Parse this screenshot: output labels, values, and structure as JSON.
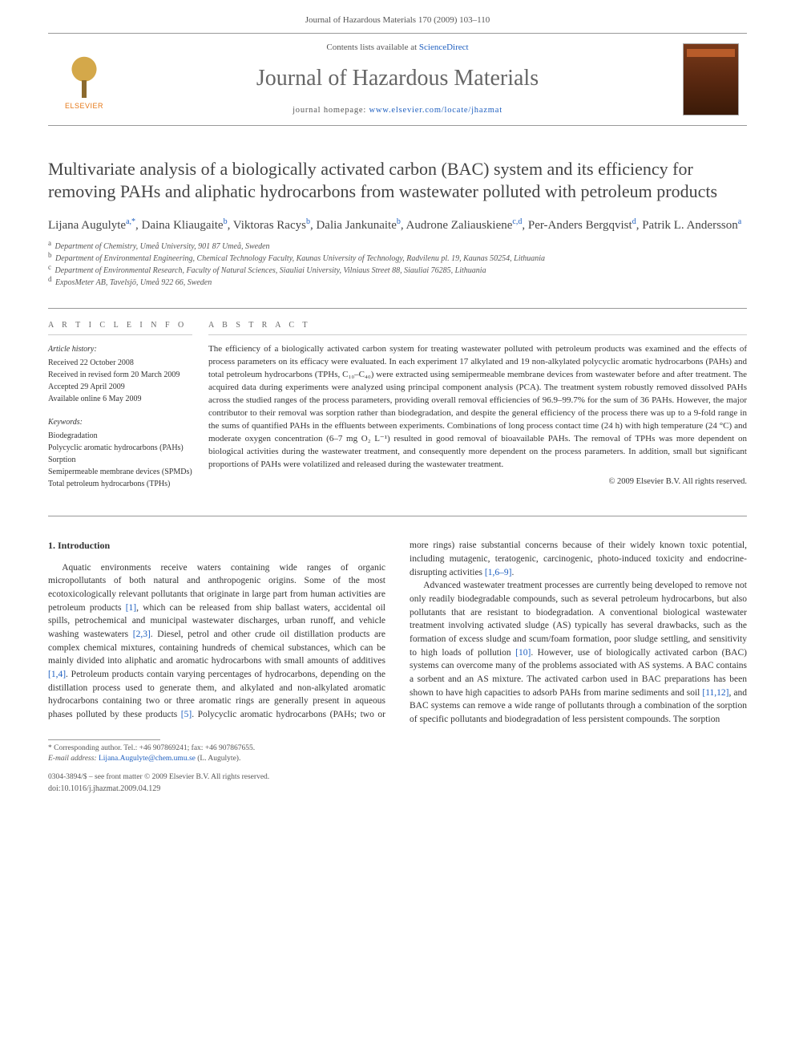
{
  "header": {
    "running_head": "Journal of Hazardous Materials 170 (2009) 103–110",
    "contents_prefix": "Contents lists available at ",
    "contents_link": "ScienceDirect",
    "journal_name": "Journal of Hazardous Materials",
    "homepage_prefix": "journal homepage: ",
    "homepage_url": "www.elsevier.com/locate/jhazmat",
    "publisher_name": "ELSEVIER"
  },
  "title": "Multivariate analysis of a biologically activated carbon (BAC) system and its efficiency for removing PAHs and aliphatic hydrocarbons from wastewater polluted with petroleum products",
  "authors_html": "Lijana Augulyte<sup>a,*</sup>, Daina Kliaugaite<sup>b</sup>, Viktoras Racys<sup>b</sup>, Dalia Jankunaite<sup>b</sup>, Audrone Zaliauskiene<sup>c,d</sup>, Per-Anders Bergqvist<sup>d</sup>, Patrik L. Andersson<sup>a</sup>",
  "affiliations": [
    {
      "sup": "a",
      "text": "Department of Chemistry, Umeå University, 901 87 Umeå, Sweden"
    },
    {
      "sup": "b",
      "text": "Department of Environmental Engineering, Chemical Technology Faculty, Kaunas University of Technology, Radvilenu pl. 19, Kaunas 50254, Lithuania"
    },
    {
      "sup": "c",
      "text": "Department of Environmental Research, Faculty of Natural Sciences, Siauliai University, Vilniaus Street 88, Siauliai 76285, Lithuania"
    },
    {
      "sup": "d",
      "text": "ExposMeter AB, Tavelsjö, Umeå 922 66, Sweden"
    }
  ],
  "article_info": {
    "heading": "A R T I C L E   I N F O",
    "history_label": "Article history:",
    "history": [
      "Received 22 October 2008",
      "Received in revised form 20 March 2009",
      "Accepted 29 April 2009",
      "Available online 6 May 2009"
    ],
    "keywords_label": "Keywords:",
    "keywords": [
      "Biodegradation",
      "Polycyclic aromatic hydrocarbons (PAHs)",
      "Sorption",
      "Semipermeable membrane devices (SPMDs)",
      "Total petroleum hydrocarbons (TPHs)"
    ]
  },
  "abstract": {
    "heading": "A B S T R A C T",
    "body": "The efficiency of a biologically activated carbon system for treating wastewater polluted with petroleum products was examined and the effects of process parameters on its efficacy were evaluated. In each experiment 17 alkylated and 19 non-alkylated polycyclic aromatic hydrocarbons (PAHs) and total petroleum hydrocarbons (TPHs, C₁₀–C₄₀) were extracted using semipermeable membrane devices from wastewater before and after treatment. The acquired data during experiments were analyzed using principal component analysis (PCA). The treatment system robustly removed dissolved PAHs across the studied ranges of the process parameters, providing overall removal efficiencies of 96.9–99.7% for the sum of 36 PAHs. However, the major contributor to their removal was sorption rather than biodegradation, and despite the general efficiency of the process there was up to a 9-fold range in the sums of quantified PAHs in the effluents between experiments. Combinations of long process contact time (24 h) with high temperature (24 °C) and moderate oxygen concentration (6–7 mg O₂ L⁻¹) resulted in good removal of bioavailable PAHs. The removal of TPHs was more dependent on biological activities during the wastewater treatment, and consequently more dependent on the process parameters. In addition, small but significant proportions of PAHs were volatilized and released during the wastewater treatment.",
    "copyright": "© 2009 Elsevier B.V. All rights reserved."
  },
  "section1": {
    "heading": "1. Introduction",
    "p1_part1": "Aquatic environments receive waters containing wide ranges of organic micropollutants of both natural and anthropogenic origins. Some of the most ecotoxicologically relevant pollutants that originate in large part from human activities are petroleum products ",
    "ref1": "[1]",
    "p1_part2": ", which can be released from ship ballast waters, accidental oil spills, petrochemical and municipal wastewater discharges, urban runoff, and vehicle washing wastewaters ",
    "ref23": "[2,3]",
    "p1_part3": ". Diesel, petrol and other crude oil distillation products are complex chemical mixtures, containing hundreds of chemical substances, which can be mainly divided into aliphatic and aromatic hydrocarbons with small amounts of additives ",
    "ref14": "[1,4]",
    "p1_part4": ". Petroleum products contain varying percentages of hydrocarbons, depending on the distillation process used to generate them, and alkylated and non-alkylated aromatic hydrocarbons containing two or three aromatic rings are generally present in aqueous phases polluted by these products ",
    "ref5": "[5]",
    "p1_part5": ". Polycyclic aromatic hydrocarbons (PAHs; two or more rings) raise substantial concerns because of their widely known toxic potential, including mutagenic, teratogenic, carcinogenic, photo-induced toxicity and endocrine-disrupting activities ",
    "ref169": "[1,6–9]",
    "p1_part6": ".",
    "p2_part1": "Advanced wastewater treatment processes are currently being developed to remove not only readily biodegradable compounds, such as several petroleum hydrocarbons, but also pollutants that are resistant to biodegradation. A conventional biological wastewater treatment involving activated sludge (AS) typically has several drawbacks, such as the formation of excess sludge and scum/foam formation, poor sludge settling, and sensitivity to high loads of pollution ",
    "ref10": "[10]",
    "p2_part2": ". However, use of biologically activated carbon (BAC) systems can overcome many of the problems associated with AS systems. A BAC contains a sorbent and an AS mixture. The activated carbon used in BAC preparations has been shown to have high capacities to adsorb PAHs from marine sediments and soil ",
    "ref1112": "[11,12]",
    "p2_part3": ", and BAC systems can remove a wide range of pollutants through a combination of the sorption of specific pollutants and biodegradation of less persistent compounds. The sorption"
  },
  "footer": {
    "corresponding": "* Corresponding author. Tel.: +46 907869241; fax: +46 907867655.",
    "email_label": "E-mail address: ",
    "email": "Lijana.Augulyte@chem.umu.se",
    "email_suffix": " (L. Augulyte).",
    "front_matter": "0304-3894/$ – see front matter © 2009 Elsevier B.V. All rights reserved.",
    "doi": "doi:10.1016/j.jhazmat.2009.04.129"
  }
}
